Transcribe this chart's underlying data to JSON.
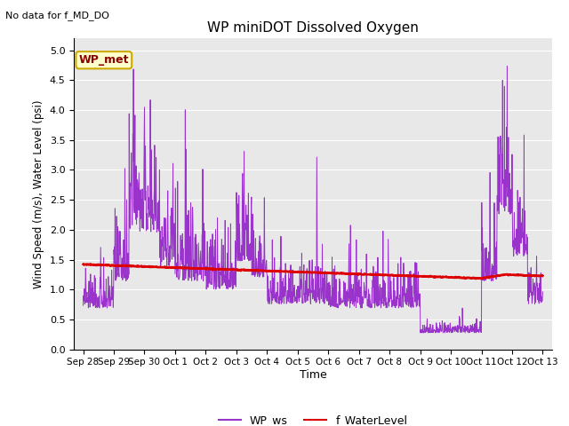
{
  "title": "WP miniDOT Dissolved Oxygen",
  "top_left_text": "No data for f_MD_DO",
  "ylabel": "Wind Speed (m/s), Water Level (psi)",
  "xlabel": "Time",
  "legend_label1": "WP_ws",
  "legend_label2": "f_WaterLevel",
  "box_label": "WP_met",
  "ylim": [
    0.0,
    5.2
  ],
  "yticks": [
    0.0,
    0.5,
    1.0,
    1.5,
    2.0,
    2.5,
    3.0,
    3.5,
    4.0,
    4.5,
    5.0
  ],
  "color_ws": "#9933cc",
  "color_wl": "#dd0000",
  "bg_color": "#e8e8e8",
  "xtick_labels": [
    "Sep 28",
    "Sep 29",
    "Sep 30",
    "Oct 1",
    "Oct 2",
    "Oct 3",
    "Oct 4",
    "Oct 5",
    "Oct 6",
    "Oct 7",
    "Oct 8",
    "Oct 9",
    "Oct 10",
    "Oct 11",
    "Oct 12",
    "Oct 13"
  ],
  "seed": 1234,
  "n_points": 1500
}
